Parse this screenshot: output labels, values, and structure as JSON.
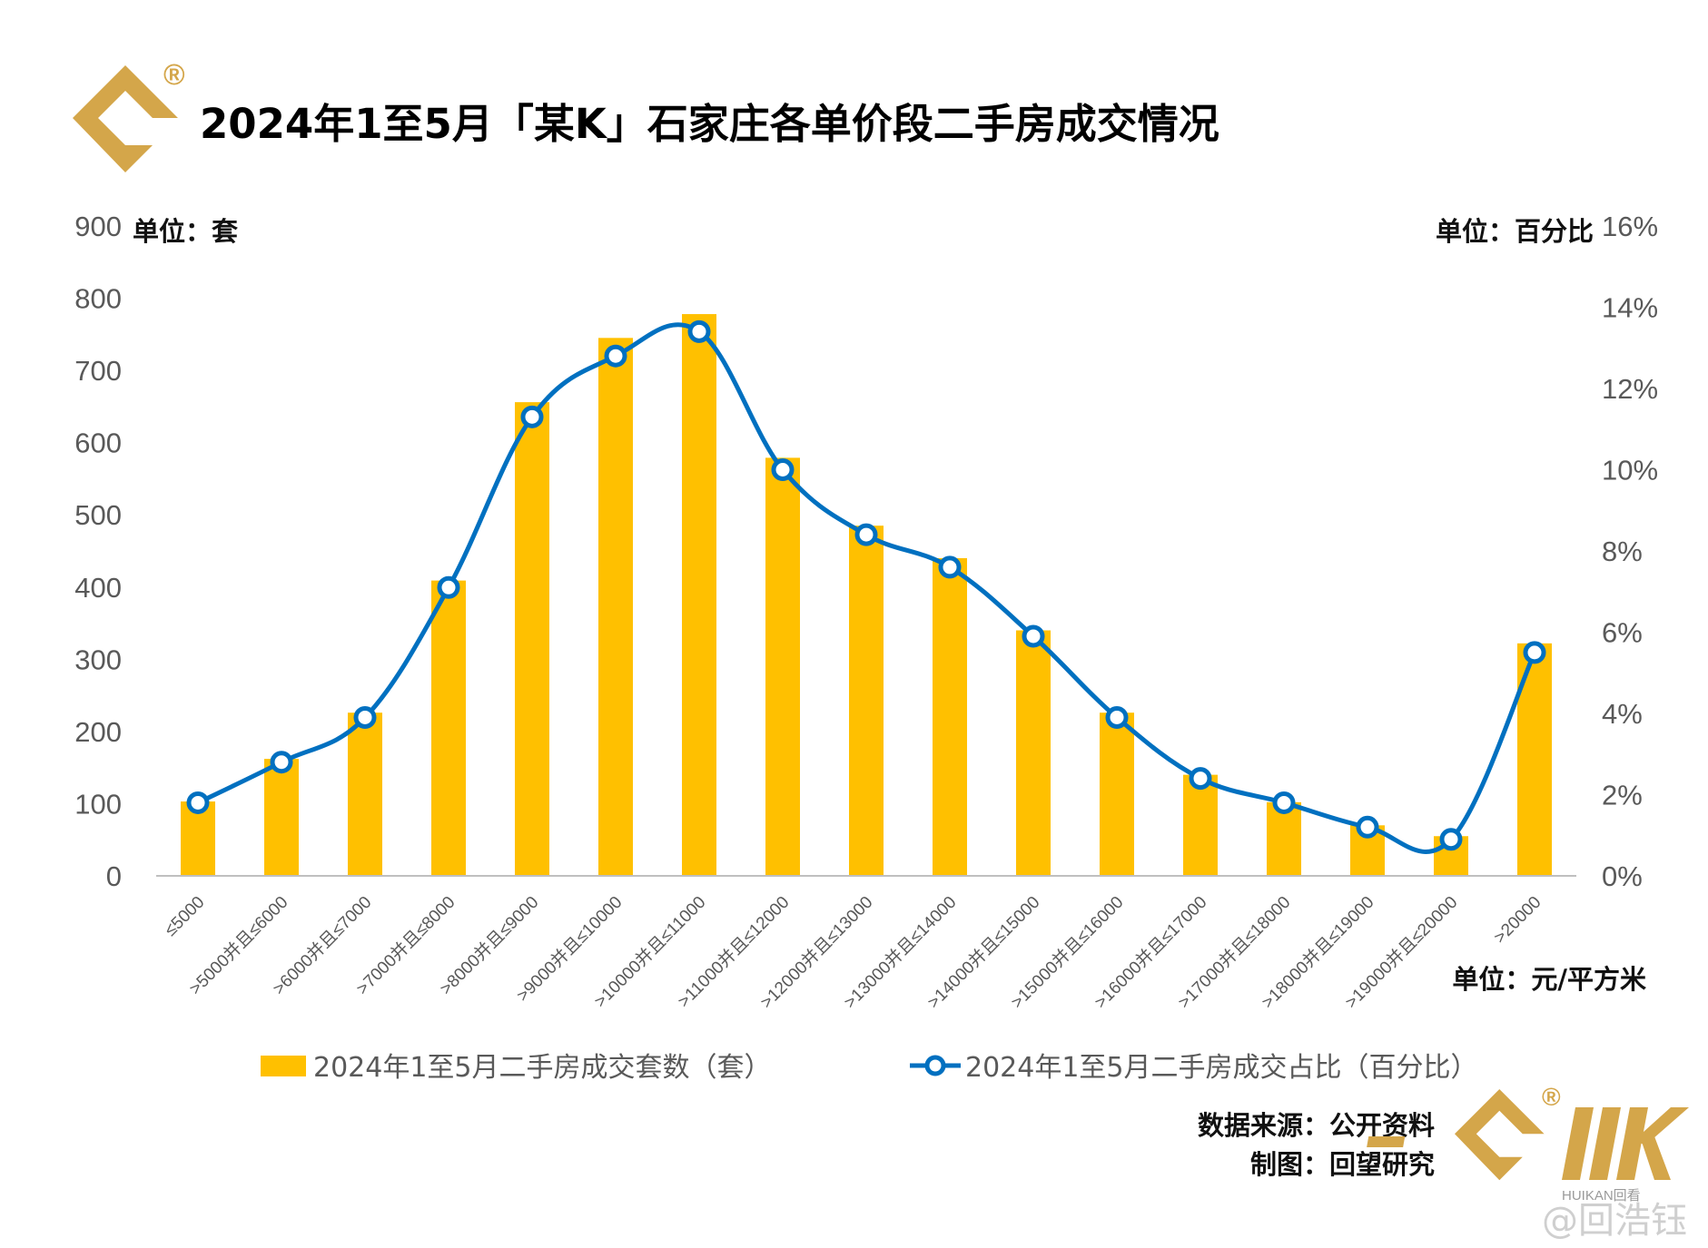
{
  "header": {
    "title": "2024年1至5月「某K」石家庄各单价段二手房成交情况",
    "registered_mark": "®"
  },
  "colors": {
    "bar": "#FFC000",
    "line": "#0070C0",
    "marker_fill": "#ffffff",
    "logo_gold": "#D4A64A",
    "axis": "#BFBFBF"
  },
  "chart_data": {
    "type": "bar",
    "title": "2024年1至5月「某K」石家庄各单价段二手房成交情况",
    "categories": [
      "≤5000",
      ">5000并且≤6000",
      ">6000并且≤7000",
      ">7000并且≤8000",
      ">8000并且≤9000",
      ">9000并且≤10000",
      ">10000并且≤11000",
      ">11000并且≤12000",
      ">12000并且≤13000",
      ">13000并且≤14000",
      ">14000并且≤15000",
      ">15000并且≤16000",
      ">16000并且≤17000",
      ">17000并且≤18000",
      ">18000并且≤19000",
      ">19000并且≤20000",
      ">20000"
    ],
    "series": [
      {
        "name": "2024年1至5月二手房成交套数（套）",
        "type": "bar",
        "axis": "left",
        "values": [
          103,
          162,
          226,
          409,
          656,
          745,
          778,
          579,
          485,
          440,
          340,
          226,
          140,
          102,
          70,
          55,
          322
        ]
      },
      {
        "name": "2024年1至5月二手房成交占比（百分比）",
        "type": "line",
        "axis": "right",
        "values": [
          1.8,
          2.8,
          3.9,
          7.1,
          11.3,
          12.8,
          13.4,
          10.0,
          8.4,
          7.6,
          5.9,
          3.9,
          2.4,
          1.8,
          1.2,
          0.9,
          5.5
        ]
      }
    ],
    "left_axis": {
      "unit_label": "单位：套",
      "ylim": [
        0,
        900
      ],
      "ticks": [
        "0",
        "100",
        "200",
        "300",
        "400",
        "500",
        "600",
        "700",
        "800",
        "900"
      ]
    },
    "right_axis": {
      "unit_label": "单位：百分比",
      "ylim": [
        0,
        16
      ],
      "ticks": [
        "0%",
        "2%",
        "4%",
        "6%",
        "8%",
        "10%",
        "12%",
        "14%",
        "16%"
      ]
    },
    "x_unit_label": "单位：元/平方米",
    "grid": false,
    "legend_position": "bottom"
  },
  "footer": {
    "source": "数据来源：公开资料",
    "maker": "制图：回望研究",
    "brand_name": "HUIKAN回看",
    "watermark": "@回浩钰"
  }
}
